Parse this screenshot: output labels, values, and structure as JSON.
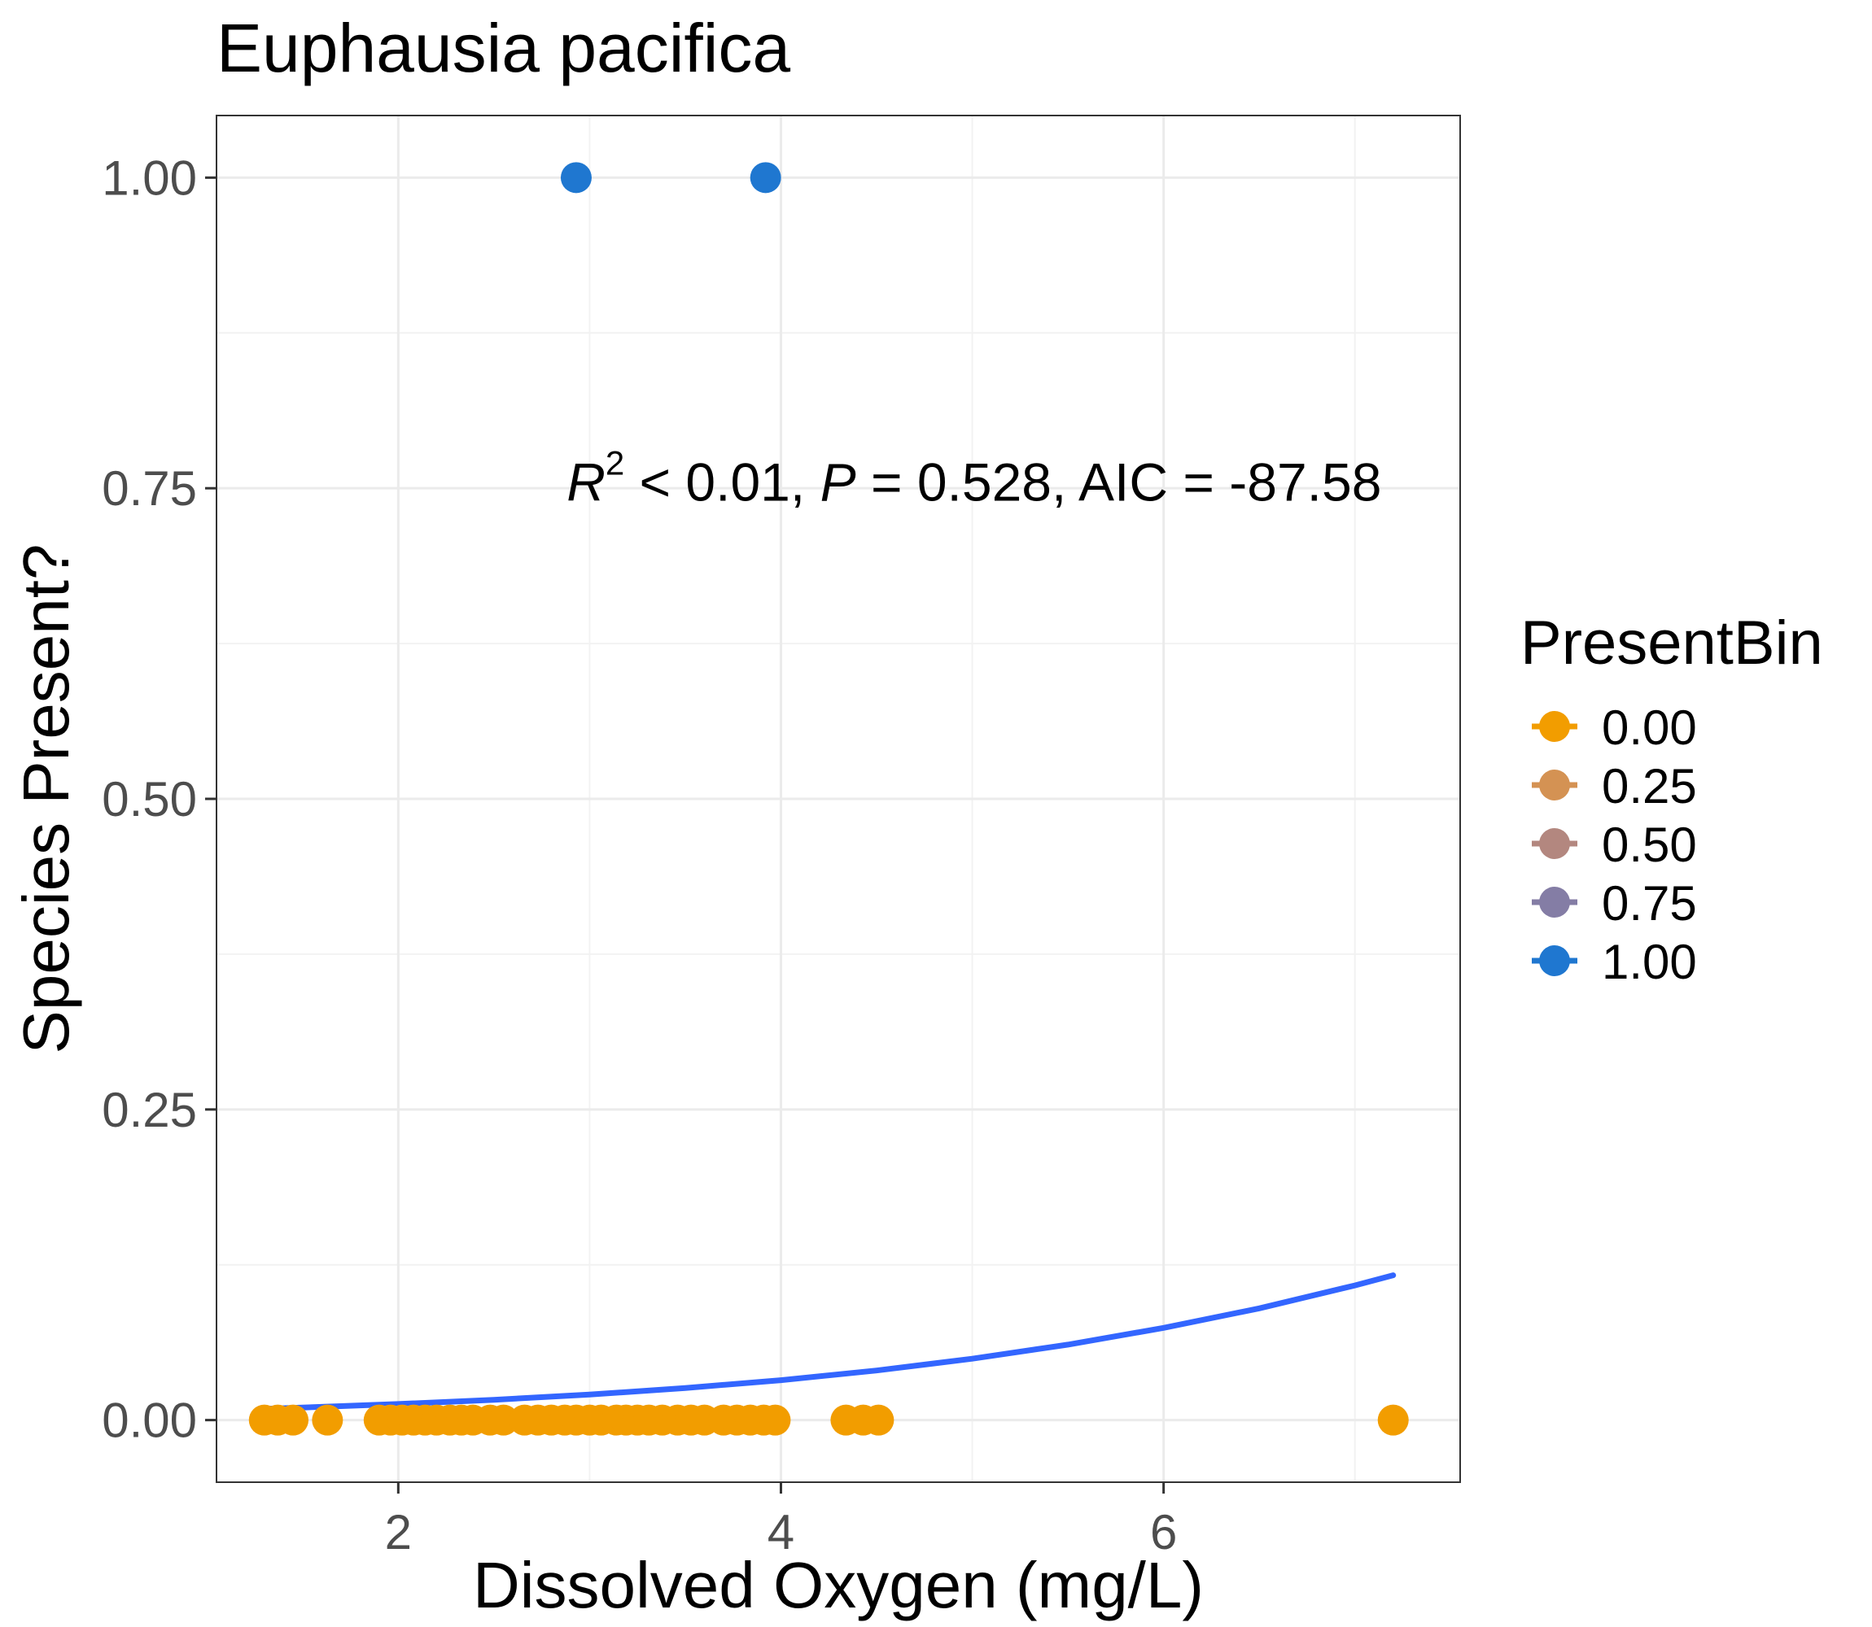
{
  "chart_data": {
    "type": "scatter",
    "title": "Euphausia pacifica",
    "xlabel": "Dissolved Oxygen (mg/L)",
    "ylabel": "Species Present?",
    "xlim": [
      1.05,
      7.55
    ],
    "ylim": [
      -0.05,
      1.05
    ],
    "x_ticks": [
      2,
      4,
      6
    ],
    "x_tick_labels": [
      "2",
      "4",
      "6"
    ],
    "y_ticks": [
      0,
      0.25,
      0.5,
      0.75,
      1
    ],
    "y_tick_labels": [
      "0.00",
      "0.25",
      "0.50",
      "0.75",
      "1.00"
    ],
    "grid": true,
    "legend": {
      "title": "PresentBin",
      "position": "right",
      "entries": [
        {
          "label": "0.00",
          "color": "#F29D00"
        },
        {
          "label": "0.25",
          "color": "#D49253"
        },
        {
          "label": "0.50",
          "color": "#B3877F"
        },
        {
          "label": "0.75",
          "color": "#847DA5"
        },
        {
          "label": "1.00",
          "color": "#1F77D0"
        }
      ]
    },
    "annotation": {
      "r2_symbol": "R",
      "r2_sup": "2",
      "r2_rest": " < 0.01, ",
      "p_symbol": "P",
      "rest": " = 0.528, AIC = -87.58",
      "x": 2.88,
      "y": 0.74
    },
    "points": [
      {
        "x": 1.3,
        "y": 0,
        "bin": 0
      },
      {
        "x": 1.37,
        "y": 0,
        "bin": 0
      },
      {
        "x": 1.45,
        "y": 0,
        "bin": 0
      },
      {
        "x": 1.63,
        "y": 0,
        "bin": 0
      },
      {
        "x": 1.9,
        "y": 0,
        "bin": 0
      },
      {
        "x": 1.96,
        "y": 0,
        "bin": 0
      },
      {
        "x": 2.02,
        "y": 0,
        "bin": 0
      },
      {
        "x": 2.08,
        "y": 0,
        "bin": 0
      },
      {
        "x": 2.14,
        "y": 0,
        "bin": 0
      },
      {
        "x": 2.2,
        "y": 0,
        "bin": 0
      },
      {
        "x": 2.27,
        "y": 0,
        "bin": 0
      },
      {
        "x": 2.33,
        "y": 0,
        "bin": 0
      },
      {
        "x": 2.39,
        "y": 0,
        "bin": 0
      },
      {
        "x": 2.48,
        "y": 0,
        "bin": 0
      },
      {
        "x": 2.55,
        "y": 0,
        "bin": 0
      },
      {
        "x": 2.66,
        "y": 0,
        "bin": 0
      },
      {
        "x": 2.73,
        "y": 0,
        "bin": 0
      },
      {
        "x": 2.8,
        "y": 0,
        "bin": 0
      },
      {
        "x": 2.87,
        "y": 0,
        "bin": 0
      },
      {
        "x": 2.93,
        "y": 0,
        "bin": 0
      },
      {
        "x": 3.0,
        "y": 0,
        "bin": 0
      },
      {
        "x": 3.06,
        "y": 0,
        "bin": 0
      },
      {
        "x": 3.14,
        "y": 0,
        "bin": 0
      },
      {
        "x": 3.19,
        "y": 0,
        "bin": 0
      },
      {
        "x": 3.25,
        "y": 0,
        "bin": 0
      },
      {
        "x": 3.31,
        "y": 0,
        "bin": 0
      },
      {
        "x": 3.38,
        "y": 0,
        "bin": 0
      },
      {
        "x": 3.46,
        "y": 0,
        "bin": 0
      },
      {
        "x": 3.53,
        "y": 0,
        "bin": 0
      },
      {
        "x": 3.6,
        "y": 0,
        "bin": 0
      },
      {
        "x": 3.7,
        "y": 0,
        "bin": 0
      },
      {
        "x": 3.77,
        "y": 0,
        "bin": 0
      },
      {
        "x": 3.84,
        "y": 0,
        "bin": 0
      },
      {
        "x": 3.91,
        "y": 0,
        "bin": 0
      },
      {
        "x": 3.97,
        "y": 0,
        "bin": 0
      },
      {
        "x": 4.34,
        "y": 0,
        "bin": 0
      },
      {
        "x": 4.43,
        "y": 0,
        "bin": 0
      },
      {
        "x": 4.51,
        "y": 0,
        "bin": 0
      },
      {
        "x": 7.2,
        "y": 0,
        "bin": 0
      },
      {
        "x": 2.93,
        "y": 1,
        "bin": 1
      },
      {
        "x": 3.92,
        "y": 1,
        "bin": 1
      }
    ],
    "fit_line": {
      "color": "#3366FF",
      "x": [
        1.3,
        1.7,
        2.0,
        2.5,
        3.0,
        3.5,
        4.0,
        4.5,
        5.0,
        5.5,
        6.0,
        6.5,
        7.0,
        7.2
      ],
      "y": [
        0.009,
        0.0112,
        0.0129,
        0.0163,
        0.0205,
        0.0258,
        0.0321,
        0.0399,
        0.0494,
        0.0607,
        0.0742,
        0.0899,
        0.1084,
        0.1166
      ]
    }
  }
}
